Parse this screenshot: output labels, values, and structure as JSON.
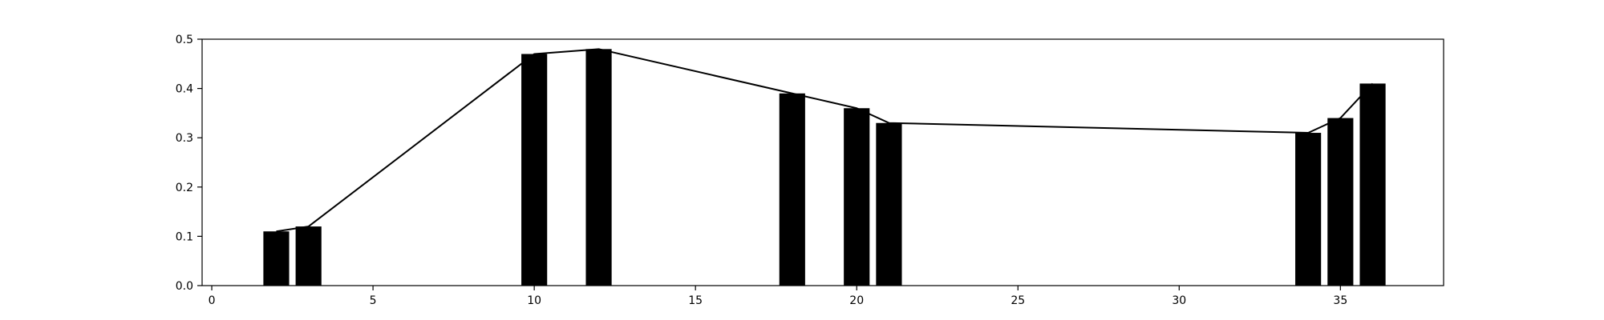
{
  "chart_data": {
    "type": "bar",
    "title": "",
    "xlabel": "",
    "ylabel": "",
    "xlim": [
      -0.3,
      38.2
    ],
    "ylim": [
      0,
      0.5
    ],
    "x_ticks": [
      0,
      5,
      10,
      15,
      20,
      25,
      30,
      35
    ],
    "y_ticks": [
      0.0,
      0.1,
      0.2,
      0.3,
      0.4,
      0.5
    ],
    "x_tick_labels": [
      "0",
      "5",
      "10",
      "15",
      "20",
      "25",
      "30",
      "35"
    ],
    "y_tick_labels": [
      "0.0",
      "0.1",
      "0.2",
      "0.3",
      "0.4",
      "0.5"
    ],
    "grid": false,
    "legend": "none",
    "bar_width": 0.8,
    "x": [
      2,
      3,
      10,
      12,
      18,
      20,
      21,
      34,
      35,
      36
    ],
    "values": [
      0.11,
      0.12,
      0.47,
      0.48,
      0.39,
      0.36,
      0.33,
      0.31,
      0.34,
      0.41
    ],
    "series": [
      {
        "type": "bar",
        "x": [
          2,
          3,
          10,
          12,
          18,
          20,
          21,
          34,
          35,
          36
        ],
        "values": [
          0.11,
          0.12,
          0.47,
          0.48,
          0.39,
          0.36,
          0.33,
          0.31,
          0.34,
          0.41
        ],
        "color": "#000000"
      },
      {
        "type": "line",
        "x": [
          2,
          3,
          10,
          12,
          18,
          20,
          21,
          34,
          35,
          36
        ],
        "values": [
          0.11,
          0.12,
          0.47,
          0.48,
          0.39,
          0.36,
          0.33,
          0.31,
          0.34,
          0.41
        ],
        "color": "#000000"
      }
    ]
  }
}
